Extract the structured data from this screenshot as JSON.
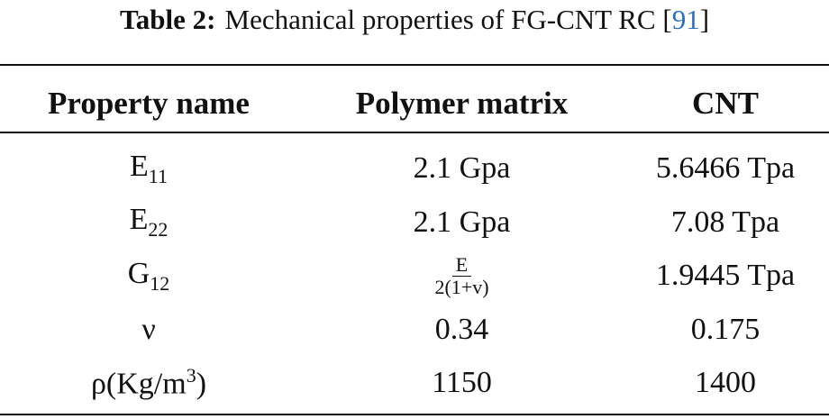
{
  "caption": {
    "label": "Table 2:",
    "text": "Mechanical properties of FG-CNT RC",
    "citation": {
      "open": "[",
      "number": "91",
      "close": "]"
    }
  },
  "table": {
    "header": [
      "Property name",
      "Polymer matrix",
      "CNT"
    ],
    "rows": [
      [
        {
          "base": "E",
          "sub": "11"
        },
        "2.1 Gpa",
        "5.6466 Tpa"
      ],
      [
        {
          "base": "E",
          "sub": "22"
        },
        "2.1 Gpa",
        "7.08 Tpa"
      ],
      [
        {
          "base": "G",
          "sub": "12"
        },
        {
          "numerator": "E",
          "denominator": "2(1+v)"
        },
        "1.9445 Tpa"
      ],
      [
        "ν",
        "0.34",
        "0.175"
      ],
      [
        {
          "base": "ρ(Kg/m",
          "sup": "3",
          "tail": ")"
        },
        "1150",
        "1400"
      ]
    ]
  }
}
